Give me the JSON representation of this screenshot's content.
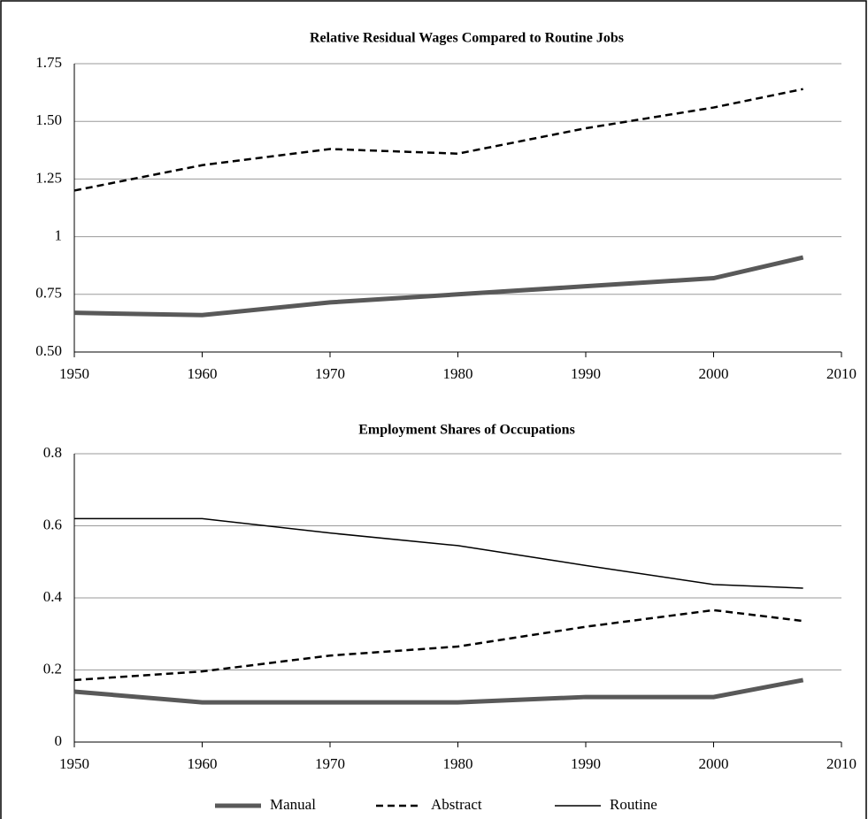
{
  "chart_data": [
    {
      "type": "line",
      "title": "Relative Residual Wages Compared to Routine Jobs",
      "x": [
        1950,
        1960,
        1970,
        1980,
        1990,
        2000,
        2007
      ],
      "series": [
        {
          "color": "#595959",
          "dash": "solid",
          "width": 5,
          "values": [
            0.67,
            0.66,
            0.715,
            0.75,
            0.785,
            0.82,
            0.91
          ]
        },
        {
          "color": "#000000",
          "dash": "dashed",
          "width": 2.5,
          "values": [
            1.2,
            1.31,
            1.38,
            1.36,
            1.47,
            1.56,
            1.64
          ]
        }
      ],
      "xlim": [
        1950,
        2010
      ],
      "xticks": [
        1950,
        1960,
        1970,
        1980,
        1990,
        2000,
        2010
      ],
      "ylim": [
        0.5,
        1.75
      ],
      "yticks": [
        {
          "value": 0.5,
          "label": "0.50"
        },
        0.75,
        1,
        1.25,
        {
          "value": 1.5,
          "label": "1.50"
        },
        1.75
      ],
      "grid": true
    },
    {
      "type": "line",
      "title": "Employment Shares of Occupations",
      "x": [
        1950,
        1960,
        1970,
        1980,
        1990,
        2000,
        2007
      ],
      "series": [
        {
          "name": "Manual",
          "color": "#595959",
          "dash": "solid",
          "width": 5,
          "values": [
            0.14,
            0.11,
            0.11,
            0.11,
            0.125,
            0.125,
            0.172
          ]
        },
        {
          "name": "Abstract",
          "color": "#000000",
          "dash": "dashed",
          "width": 2.5,
          "values": [
            0.172,
            0.196,
            0.24,
            0.265,
            0.32,
            0.366,
            0.336
          ]
        },
        {
          "name": "Routine",
          "color": "#000000",
          "dash": "solid",
          "width": 1.5,
          "values": [
            0.62,
            0.62,
            0.58,
            0.545,
            0.49,
            0.437,
            0.427
          ]
        }
      ],
      "xlim": [
        1950,
        2010
      ],
      "xticks": [
        1950,
        1960,
        1970,
        1980,
        1990,
        2000,
        2010
      ],
      "ylim": [
        0,
        0.8
      ],
      "yticks": [
        0,
        0.2,
        0.4,
        0.6,
        0.8
      ],
      "grid": true,
      "legend": "bottom"
    }
  ]
}
